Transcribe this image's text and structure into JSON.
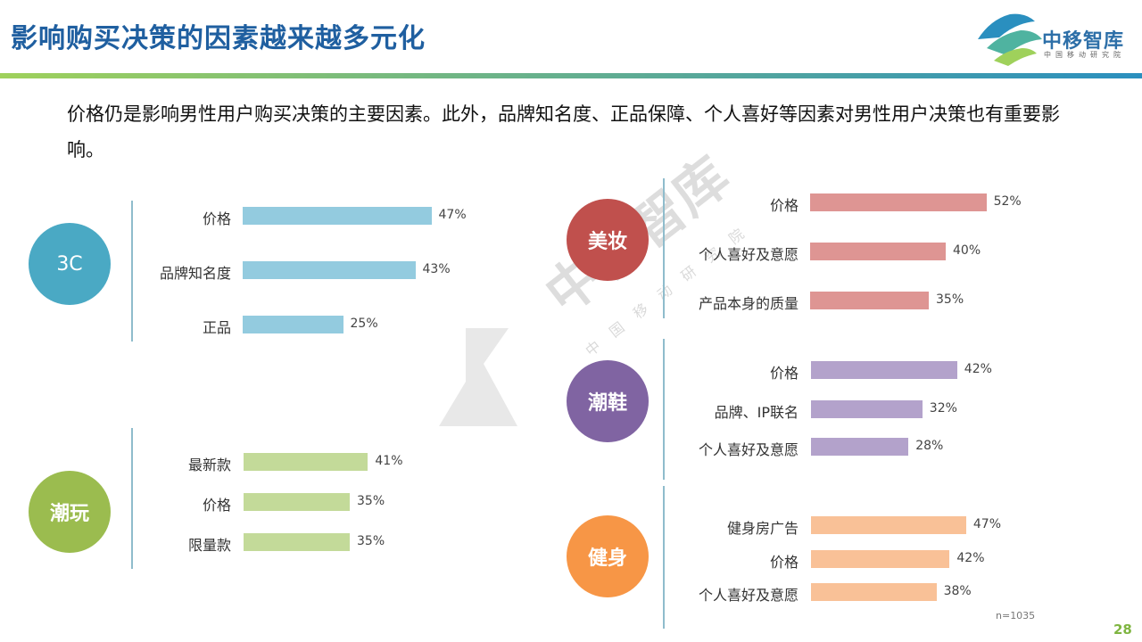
{
  "header": {
    "title": "影响购买决策的因素越来越多元化"
  },
  "logo": {
    "name": "中移智库",
    "sub": "中国移动研究院"
  },
  "intro": "价格仍是影响男性用户购买决策的主要因素。此外，品牌知名度、正品保障、个人喜好等因素对男性用户决策也有重要影响。",
  "watermark": {
    "main": "中移智库",
    "sub": "中国移动研究院"
  },
  "chart_data": [
    {
      "type": "bar",
      "group": "3C",
      "color": "#4aa9c4",
      "bar_color": "#93cbdf",
      "categories": [
        "价格",
        "品牌知名度",
        "正品"
      ],
      "values": [
        47,
        43,
        25
      ],
      "labels": [
        "47%",
        "43%",
        "25%"
      ]
    },
    {
      "type": "bar",
      "group": "潮玩",
      "color": "#9bbc4f",
      "bar_color": "#c3da99",
      "categories": [
        "最新款",
        "价格",
        "限量款"
      ],
      "values": [
        41,
        35,
        35
      ],
      "labels": [
        "41%",
        "35%",
        "35%"
      ]
    },
    {
      "type": "bar",
      "group": "美妆",
      "color": "#c0504d",
      "bar_color": "#de9593",
      "categories": [
        "价格",
        "个人喜好及意愿",
        "产品本身的质量"
      ],
      "values": [
        52,
        40,
        35
      ],
      "labels": [
        "52%",
        "40%",
        "35%"
      ]
    },
    {
      "type": "bar",
      "group": "潮鞋",
      "color": "#8064a2",
      "bar_color": "#b3a2cb",
      "categories": [
        "价格",
        "品牌、IP联名",
        "个人喜好及意愿"
      ],
      "values": [
        42,
        32,
        28
      ],
      "labels": [
        "42%",
        "32%",
        "28%"
      ]
    },
    {
      "type": "bar",
      "group": "健身",
      "color": "#f79646",
      "bar_color": "#f9c197",
      "categories": [
        "健身房广告",
        "价格",
        "个人喜好及意愿"
      ],
      "values": [
        47,
        42,
        38
      ],
      "labels": [
        "47%",
        "42%",
        "38%"
      ]
    }
  ],
  "footer": {
    "note": "n=1035",
    "page": "28"
  }
}
